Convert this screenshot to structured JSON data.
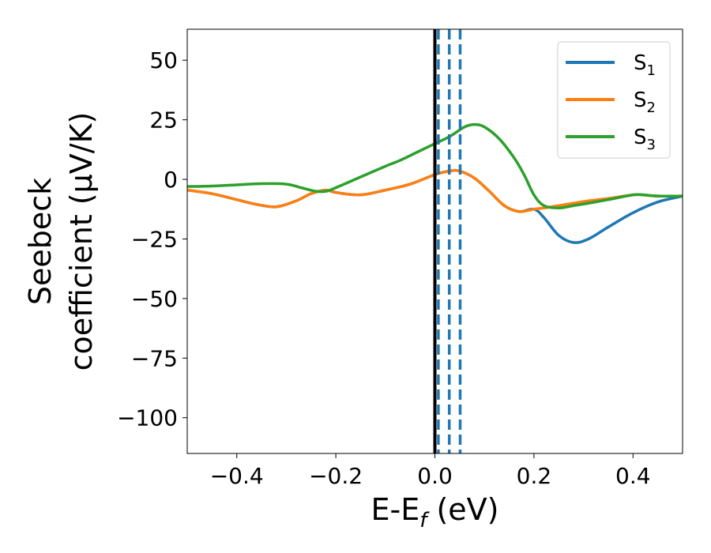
{
  "chart_data": {
    "type": "line",
    "xlabel": {
      "main": "E-E",
      "sub": "f",
      "tail": " (eV)"
    },
    "ylabel": {
      "line1": "Seebeck",
      "line2": "coefficient  (μV/K)"
    },
    "xlim": [
      -0.5,
      0.5
    ],
    "ylim": [
      -115,
      63
    ],
    "xticks": [
      -0.4,
      -0.2,
      0.0,
      0.2,
      0.4
    ],
    "xtick_labels": [
      "−0.4",
      "−0.2",
      "0.0",
      "0.2",
      "0.4"
    ],
    "yticks": [
      50,
      25,
      0,
      -25,
      -50,
      -75,
      -100
    ],
    "ytick_labels": [
      "50",
      "25",
      "0",
      "−25",
      "−50",
      "−75",
      "−100"
    ],
    "grid": false,
    "legend_position": "top-right",
    "vlines": [
      {
        "x": 0.0,
        "style": "solid",
        "color": "#000000"
      },
      {
        "x": 0.007,
        "style": "dashed",
        "color": "#1f77b4"
      },
      {
        "x": 0.029,
        "style": "dashed",
        "color": "#1f77b4"
      },
      {
        "x": 0.051,
        "style": "dashed",
        "color": "#1f77b4"
      }
    ],
    "series": [
      {
        "name": "S",
        "sub": "1",
        "color": "#1f77b4",
        "x": [
          -0.5,
          -0.45,
          -0.4,
          -0.36,
          -0.32,
          -0.28,
          -0.25,
          -0.22,
          -0.2,
          -0.15,
          -0.1,
          -0.05,
          0.0,
          0.03,
          0.05,
          0.08,
          0.11,
          0.14,
          0.17,
          0.2,
          0.22,
          0.25,
          0.28,
          0.31,
          0.35,
          0.4,
          0.45,
          0.5
        ],
        "y": [
          -4.5,
          -6,
          -8.5,
          -10.5,
          -11.5,
          -9,
          -6,
          -4.5,
          -5.5,
          -6.5,
          -4.5,
          -2,
          2,
          3.5,
          3.5,
          0.5,
          -5,
          -11,
          -13.5,
          -12.5,
          -16,
          -23.5,
          -26.5,
          -25,
          -20,
          -14,
          -9.5,
          -7
        ]
      },
      {
        "name": "S",
        "sub": "2",
        "color": "#ff7f0e",
        "x": [
          -0.5,
          -0.45,
          -0.4,
          -0.36,
          -0.32,
          -0.28,
          -0.25,
          -0.22,
          -0.2,
          -0.15,
          -0.1,
          -0.05,
          0.0,
          0.03,
          0.05,
          0.08,
          0.11,
          0.14,
          0.17,
          0.2,
          0.22,
          0.25,
          0.28,
          0.31,
          0.35,
          0.4,
          0.42,
          0.45,
          0.5
        ],
        "y": [
          -4.5,
          -6,
          -8.5,
          -10.5,
          -11.5,
          -9,
          -6,
          -4.5,
          -5.5,
          -6.5,
          -4.5,
          -2,
          2,
          3.5,
          3.5,
          0.5,
          -5,
          -11,
          -13.5,
          -12.5,
          -12,
          -11,
          -10,
          -9,
          -8,
          -6.5,
          -6.5,
          -7,
          -7
        ]
      },
      {
        "name": "S",
        "sub": "3",
        "color": "#2ca02c",
        "x": [
          -0.5,
          -0.45,
          -0.4,
          -0.35,
          -0.3,
          -0.27,
          -0.24,
          -0.22,
          -0.2,
          -0.15,
          -0.1,
          -0.07,
          -0.04,
          0.0,
          0.03,
          0.06,
          0.08,
          0.1,
          0.13,
          0.16,
          0.18,
          0.2,
          0.22,
          0.25,
          0.28,
          0.31,
          0.35,
          0.4,
          0.42,
          0.45,
          0.5
        ],
        "y": [
          -3,
          -2.8,
          -2.3,
          -1.8,
          -2,
          -3.5,
          -5,
          -5,
          -3.5,
          1,
          5.5,
          8,
          11,
          15,
          18,
          22,
          23,
          22,
          17,
          9,
          2,
          -6.5,
          -11,
          -12,
          -11,
          -10,
          -8.5,
          -6.5,
          -6.5,
          -7,
          -7
        ]
      }
    ]
  }
}
